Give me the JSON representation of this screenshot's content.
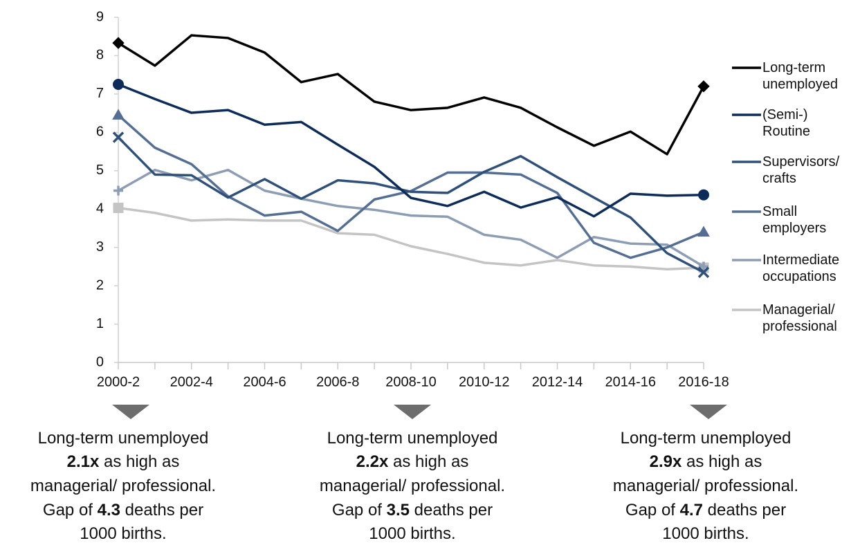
{
  "chart_data": {
    "type": "line",
    "categories": [
      "2000-2",
      null,
      "2002-4",
      null,
      "2004-6",
      null,
      "2006-8",
      null,
      "2008-10",
      null,
      "2010-12",
      null,
      "2012-14",
      null,
      "2014-16",
      null,
      "2016-18"
    ],
    "ylim": [
      0,
      9
    ],
    "yticks": [
      0,
      1,
      2,
      3,
      4,
      5,
      6,
      7,
      8,
      9
    ],
    "series": [
      {
        "name": "Long-term unemployed",
        "color": "#000000",
        "marker": "diamond",
        "values": [
          8.33,
          7.74,
          8.53,
          8.46,
          8.08,
          7.31,
          7.52,
          6.8,
          6.58,
          6.64,
          6.91,
          6.64,
          6.13,
          5.65,
          6.02,
          5.43,
          7.2
        ]
      },
      {
        "name": "(Semi-) Routine",
        "color": "#0d2c59",
        "marker": "circle",
        "values": [
          7.25,
          6.87,
          6.51,
          6.58,
          6.2,
          6.27,
          5.68,
          5.1,
          4.29,
          4.08,
          4.45,
          4.04,
          4.31,
          3.81,
          4.4,
          4.35,
          4.37
        ]
      },
      {
        "name": "Supervisors/ crafts",
        "color": "#2e5079",
        "marker": "x",
        "values": [
          5.87,
          4.9,
          4.88,
          4.3,
          4.78,
          4.27,
          4.75,
          4.67,
          4.45,
          4.42,
          4.97,
          5.38,
          4.83,
          4.3,
          3.78,
          2.85,
          2.35
        ]
      },
      {
        "name": "Small employers",
        "color": "#546f93",
        "marker": "triangle",
        "values": [
          6.45,
          5.6,
          5.17,
          4.33,
          3.83,
          3.93,
          3.43,
          4.25,
          4.47,
          4.95,
          4.95,
          4.9,
          4.42,
          3.12,
          2.73,
          3.0,
          3.4
        ]
      },
      {
        "name": "Intermediate occupations",
        "color": "#8d9db4",
        "marker": "plus",
        "values": [
          4.48,
          5.02,
          4.75,
          5.02,
          4.48,
          4.27,
          4.08,
          3.98,
          3.83,
          3.8,
          3.33,
          3.2,
          2.73,
          3.27,
          3.1,
          3.07,
          2.5
        ]
      },
      {
        "name": "Managerial/ professional",
        "color": "#c4c4c4",
        "marker": "square",
        "values": [
          4.03,
          3.9,
          3.7,
          3.73,
          3.7,
          3.7,
          3.37,
          3.33,
          3.03,
          2.83,
          2.6,
          2.53,
          2.67,
          2.53,
          2.5,
          2.43,
          2.47
        ]
      }
    ],
    "annotations": [
      {
        "lines": [
          [
            {
              "text": "Long-term unemployed"
            }
          ],
          [
            {
              "text": "2.1x",
              "bold": true
            },
            {
              "text": " as high as"
            }
          ],
          [
            {
              "text": "managerial/ professional."
            }
          ],
          [
            {
              "text": "Gap of "
            },
            {
              "text": "4.3",
              "bold": true
            },
            {
              "text": " deaths per"
            }
          ],
          [
            {
              "text": "1000 births."
            }
          ]
        ]
      },
      {
        "lines": [
          [
            {
              "text": "Long-term unemployed"
            }
          ],
          [
            {
              "text": "2.2x",
              "bold": true
            },
            {
              "text": " as high as"
            }
          ],
          [
            {
              "text": "managerial/ professional."
            }
          ],
          [
            {
              "text": "Gap of "
            },
            {
              "text": "3.5",
              "bold": true
            },
            {
              "text": " deaths per"
            }
          ],
          [
            {
              "text": "1000 births."
            }
          ]
        ]
      },
      {
        "lines": [
          [
            {
              "text": "Long-term unemployed"
            }
          ],
          [
            {
              "text": "2.9x",
              "bold": true
            },
            {
              "text": " as high as"
            }
          ],
          [
            {
              "text": "managerial/ professional."
            }
          ],
          [
            {
              "text": "Gap of "
            },
            {
              "text": "4.7",
              "bold": true
            },
            {
              "text": " deaths per"
            }
          ],
          [
            {
              "text": "1000 births."
            }
          ]
        ]
      }
    ]
  }
}
